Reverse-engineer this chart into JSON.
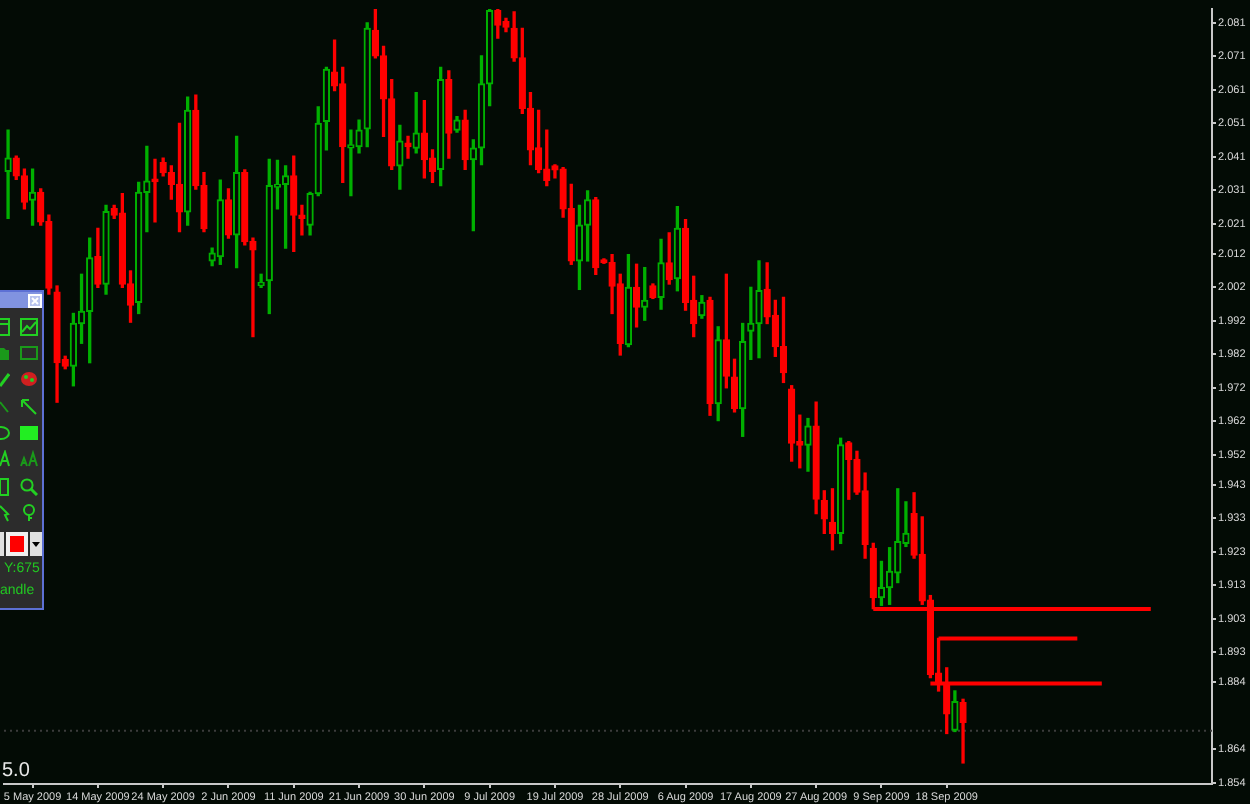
{
  "chart_data": {
    "type": "candlestick",
    "categories": [
      null,
      null,
      null,
      "5 May 2009",
      null,
      null,
      null,
      null,
      null,
      null,
      null,
      "14 May 2009",
      null,
      null,
      null,
      null,
      null,
      null,
      null,
      "24 May 2009",
      null,
      null,
      null,
      null,
      null,
      null,
      null,
      "2 Jun 2009",
      null,
      null,
      null,
      null,
      null,
      null,
      null,
      "11 Jun 2009",
      null,
      null,
      null,
      null,
      null,
      null,
      null,
      "21 Jun 2009",
      null,
      null,
      null,
      null,
      null,
      null,
      null,
      "30 Jun 2009",
      null,
      null,
      null,
      null,
      null,
      null,
      null,
      "9 Jul 2009",
      null,
      null,
      null,
      null,
      null,
      null,
      null,
      "19 Jul 2009",
      null,
      null,
      null,
      null,
      null,
      null,
      null,
      "28 Jul 2009",
      null,
      null,
      null,
      null,
      null,
      null,
      null,
      "6 Aug 2009",
      null,
      null,
      null,
      null,
      null,
      null,
      null,
      "17 Aug 2009",
      null,
      null,
      null,
      null,
      null,
      null,
      null,
      "27 Aug 2009",
      null,
      null,
      null,
      null,
      null,
      null,
      null,
      "9 Sep 2009",
      null,
      null,
      null,
      null,
      null,
      null,
      null,
      "18 Sep 2009",
      null,
      null,
      null,
      null,
      null,
      null,
      null,
      null,
      null,
      null,
      null,
      null,
      null,
      null,
      null,
      null,
      null,
      null,
      null,
      null,
      null,
      null,
      null,
      null,
      null,
      null,
      null,
      null,
      null,
      null,
      null,
      null
    ],
    "ohlc": [
      [
        2.0367,
        2.049,
        2.0226,
        2.0406
      ],
      [
        2.0406,
        2.0412,
        2.0343,
        2.0353
      ],
      [
        2.0353,
        2.0373,
        2.0255,
        2.0275
      ],
      [
        2.0281,
        2.0373,
        2.0206,
        2.0304
      ],
      [
        2.0304,
        2.0314,
        2.0206,
        2.0216
      ],
      [
        2.0216,
        2.0236,
        2.0,
        2.0018
      ],
      [
        2.0006,
        2.0024,
        1.9677,
        1.9795
      ],
      [
        1.9805,
        1.9814,
        1.9777,
        1.9785
      ],
      [
        1.9785,
        1.9942,
        1.9726,
        1.9912
      ],
      [
        1.9912,
        2.0059,
        1.9853,
        1.9948
      ],
      [
        1.9948,
        2.0167,
        1.9795,
        2.0108
      ],
      [
        2.0112,
        2.0196,
        2.002,
        2.003
      ],
      [
        2.003,
        2.0265,
        2.0,
        2.0246
      ],
      [
        2.0255,
        2.0265,
        2.0226,
        2.0236
      ],
      [
        2.0242,
        2.03,
        2.002,
        2.003
      ],
      [
        2.003,
        2.0069,
        1.9916,
        1.9967
      ],
      [
        1.9975,
        2.0334,
        1.9942,
        2.0304
      ],
      [
        2.0304,
        2.0441,
        2.0187,
        2.0337
      ],
      [
        2.0343,
        2.0402,
        2.0216,
        2.0336
      ],
      [
        2.0393,
        2.0406,
        2.0353,
        2.0363
      ],
      [
        2.0363,
        2.0383,
        2.0284,
        2.0328
      ],
      [
        2.0328,
        2.051,
        2.0187,
        2.0246
      ],
      [
        2.0246,
        2.0588,
        2.0206,
        2.0549
      ],
      [
        2.0549,
        2.0594,
        2.0314,
        2.0324
      ],
      [
        2.0324,
        2.0363,
        2.0187,
        2.0196
      ],
      [
        2.0099,
        2.0137,
        2.0085,
        2.0122
      ],
      [
        2.0112,
        2.034,
        2.0089,
        2.0281
      ],
      [
        2.0281,
        2.0314,
        2.0167,
        2.0177
      ],
      [
        2.0177,
        2.0471,
        2.0079,
        2.0363
      ],
      [
        2.0363,
        2.0371,
        2.0147,
        2.0157
      ],
      [
        2.0157,
        2.0167,
        1.9873,
        2.0132
      ],
      [
        2.0026,
        2.0059,
        2.002,
        2.0034
      ],
      [
        2.004,
        2.0402,
        1.9942,
        2.0324
      ],
      [
        2.032,
        2.0399,
        2.0255,
        2.0328
      ],
      [
        2.0328,
        2.0383,
        2.0137,
        2.0353
      ],
      [
        2.0353,
        2.0412,
        2.0128,
        2.0236
      ],
      [
        2.0236,
        2.0265,
        2.0177,
        2.0226
      ],
      [
        2.0206,
        2.0304,
        2.0177,
        2.03
      ],
      [
        2.03,
        2.0559,
        2.0294,
        2.051
      ],
      [
        2.0516,
        2.0677,
        2.0431,
        2.0671
      ],
      [
        2.0663,
        2.0759,
        2.0608,
        2.0622
      ],
      [
        2.0628,
        2.0677,
        2.0334,
        2.0441
      ],
      [
        2.0437,
        2.049,
        2.0294,
        2.0446
      ],
      [
        2.0441,
        2.052,
        2.0422,
        2.049
      ],
      [
        2.0494,
        2.081,
        2.0441,
        2.0794
      ],
      [
        2.0788,
        2.085,
        2.0706,
        2.0712
      ],
      [
        2.0712,
        2.074,
        2.0471,
        2.0583
      ],
      [
        2.0583,
        2.0641,
        2.0373,
        2.0383
      ],
      [
        2.0383,
        2.0504,
        2.0314,
        2.0457
      ],
      [
        2.0451,
        2.0471,
        2.0406,
        2.0441
      ],
      [
        2.0436,
        2.0602,
        2.0422,
        2.0481
      ],
      [
        2.0481,
        2.0578,
        2.0347,
        2.0402
      ],
      [
        2.0406,
        2.0431,
        2.0334,
        2.0367
      ],
      [
        2.0373,
        2.0677,
        2.0324,
        2.0641
      ],
      [
        2.0641,
        2.0667,
        2.0406,
        2.0481
      ],
      [
        2.049,
        2.053,
        2.0484,
        2.052
      ],
      [
        2.052,
        2.0549,
        2.0373,
        2.0402
      ],
      [
        2.0402,
        2.0461,
        2.019,
        2.0436
      ],
      [
        2.0437,
        2.0712,
        2.0387,
        2.0628
      ],
      [
        2.0628,
        2.085,
        2.0563,
        2.0847
      ],
      [
        2.0847,
        2.085,
        2.0765,
        2.0804
      ],
      [
        2.0814,
        2.0824,
        2.0784,
        2.0798
      ],
      [
        2.0794,
        2.0843,
        2.0696,
        2.0706
      ],
      [
        2.0706,
        2.0794,
        2.054,
        2.0555
      ],
      [
        2.0555,
        2.0602,
        2.0387,
        2.0431
      ],
      [
        2.0437,
        2.0549,
        2.0363,
        2.0373
      ],
      [
        2.0373,
        2.049,
        2.0324,
        2.034
      ],
      [
        2.0383,
        2.0386,
        2.0347,
        2.0371
      ],
      [
        2.0373,
        2.0378,
        2.023,
        2.0255
      ],
      [
        2.0255,
        2.0328,
        2.0089,
        2.0099
      ],
      [
        2.0099,
        2.0265,
        2.0014,
        2.0206
      ],
      [
        2.0206,
        2.0308,
        2.0099,
        2.0281
      ],
      [
        2.0281,
        2.0288,
        2.0059,
        2.0079
      ],
      [
        2.0102,
        2.0105,
        2.0092,
        2.0094
      ],
      [
        2.0094,
        2.0118,
        1.9942,
        2.0024
      ],
      [
        2.003,
        2.0059,
        1.9818,
        1.9853
      ],
      [
        1.9849,
        2.0118,
        1.9843,
        2.002
      ],
      [
        2.002,
        2.0089,
        1.9902,
        1.9961
      ],
      [
        1.9961,
        2.0079,
        1.9922,
        1.9981
      ],
      [
        2.0024,
        2.003,
        1.9987,
        1.999
      ],
      [
        1.999,
        2.0163,
        1.9955,
        2.0093
      ],
      [
        2.0093,
        2.0183,
        2.003,
        2.0043
      ],
      [
        2.0046,
        2.0261,
        2.001,
        2.0196
      ],
      [
        2.0196,
        2.0222,
        1.9952,
        1.9975
      ],
      [
        1.9981,
        2.0053,
        1.9873,
        1.9912
      ],
      [
        1.9936,
        1.9995,
        1.9928,
        1.9975
      ],
      [
        1.9981,
        1.999,
        1.9638,
        1.9673
      ],
      [
        1.9673,
        1.9902,
        1.9622,
        1.9863
      ],
      [
        1.9863,
        2.0059,
        1.972,
        1.9755
      ],
      [
        1.9752,
        1.9805,
        1.9648,
        1.9658
      ],
      [
        1.9658,
        1.9912,
        1.9575,
        1.9858
      ],
      [
        1.9889,
        2.002,
        1.9805,
        1.9912
      ],
      [
        1.9912,
        2.0099,
        1.981,
        2.001
      ],
      [
        2.0014,
        2.0093,
        1.9912,
        1.9932
      ],
      [
        1.9936,
        1.9981,
        1.9814,
        1.9843
      ],
      [
        1.9843,
        1.999,
        1.9736,
        1.9765
      ],
      [
        1.9716,
        1.9726,
        1.9501,
        1.9555
      ],
      [
        1.9559,
        1.9638,
        1.9481,
        1.9549
      ],
      [
        1.9549,
        1.9628,
        1.9471,
        1.9605
      ],
      [
        1.9605,
        1.9677,
        1.9344,
        1.9387
      ],
      [
        1.9383,
        1.9412,
        1.9285,
        1.9328
      ],
      [
        1.9318,
        1.9418,
        1.9236,
        1.9285
      ],
      [
        1.9285,
        1.9569,
        1.9255,
        1.9549
      ],
      [
        1.9555,
        1.9559,
        1.9387,
        1.9506
      ],
      [
        1.9506,
        1.953,
        1.9402,
        1.9408
      ],
      [
        1.9412,
        1.9465,
        1.9211,
        1.9252
      ],
      [
        1.924,
        1.9255,
        1.906,
        1.9093
      ],
      [
        1.9093,
        1.9201,
        1.907,
        1.9123
      ],
      [
        1.9123,
        1.9242,
        1.9073,
        1.9171
      ],
      [
        1.9167,
        1.9418,
        1.9138,
        1.926
      ],
      [
        1.9255,
        1.9379,
        1.9246,
        1.9285
      ],
      [
        1.9344,
        1.9406,
        1.9211,
        1.922
      ],
      [
        1.9222,
        1.9334,
        1.9073,
        1.9083
      ],
      [
        1.9085,
        1.9099,
        1.8854,
        1.8864
      ],
      [
        1.8867,
        1.8971,
        1.8814,
        1.8838
      ],
      [
        1.8838,
        1.8883,
        1.8687,
        1.8746
      ],
      [
        1.8697,
        1.8814,
        1.8693,
        1.8782
      ],
      [
        1.8779,
        1.8789,
        1.8599,
        1.872
      ],
      null,
      null,
      null,
      null,
      null,
      null,
      null,
      null,
      null,
      null,
      null,
      null,
      null,
      null,
      null,
      null,
      null,
      null,
      null,
      null,
      null,
      null,
      null,
      null,
      null,
      null,
      null,
      null,
      null,
      null
    ],
    "colors": [
      "#00b000",
      "#ff0000",
      "#ff0000",
      "#00b000",
      "#ff0000",
      "#ff0000",
      "#ff0000",
      "#ff0000",
      "#00b000",
      "#00b000",
      "#00b000",
      "#ff0000",
      "#00b000",
      "#ff0000",
      "#ff0000",
      "#ff0000",
      "#00b000",
      "#00b000",
      "#ff0000",
      "#ff0000",
      "#ff0000",
      "#ff0000",
      "#00b000",
      "#ff0000",
      "#ff0000",
      "#00b000",
      "#00b000",
      "#ff0000",
      "#00b000",
      "#ff0000",
      "#ff0000",
      "#00b000",
      "#00b000",
      "#00b000",
      "#00b000",
      "#ff0000",
      "#ff0000",
      "#00b000",
      "#00b000",
      "#00b000",
      "#ff0000",
      "#ff0000",
      "#00b000",
      "#00b000",
      "#00b000",
      "#ff0000",
      "#ff0000",
      "#ff0000",
      "#00b000",
      "#ff0000",
      "#00b000",
      "#ff0000",
      "#ff0000",
      "#00b000",
      "#ff0000",
      "#00b000",
      "#ff0000",
      "#00b000",
      "#00b000",
      "#00b000",
      "#ff0000",
      "#ff0000",
      "#ff0000",
      "#ff0000",
      "#ff0000",
      "#ff0000",
      "#ff0000",
      "#ff0000",
      "#ff0000",
      "#ff0000",
      "#00b000",
      "#00b000",
      "#ff0000",
      "#ff0000",
      "#ff0000",
      "#ff0000",
      "#00b000",
      "#ff0000",
      "#00b000",
      "#ff0000",
      "#00b000",
      "#ff0000",
      "#00b000",
      "#ff0000",
      "#ff0000",
      "#00b000",
      "#ff0000",
      "#00b000",
      "#ff0000",
      "#ff0000",
      "#00b000",
      "#00b000",
      "#00b000",
      "#ff0000",
      "#ff0000",
      "#ff0000",
      "#ff0000",
      "#ff0000",
      "#00b000",
      "#ff0000",
      "#ff0000",
      "#ff0000",
      "#00b000",
      "#ff0000",
      "#ff0000",
      "#ff0000",
      "#ff0000",
      "#00b000",
      "#00b000",
      "#00b000",
      "#00b000",
      "#ff0000",
      "#ff0000",
      "#ff0000",
      "#ff0000",
      "#ff0000",
      "#00b000",
      "#ff0000",
      null,
      null,
      null,
      null,
      null,
      null,
      null,
      null,
      null,
      null,
      null,
      null,
      null,
      null,
      null,
      null,
      null,
      null,
      null,
      null,
      null,
      null,
      null,
      null,
      null,
      null,
      null,
      null,
      null,
      null
    ],
    "series": [
      {
        "type": "line",
        "color": "#ff0000",
        "values": [
          null,
          null,
          null,
          null,
          null,
          null,
          null,
          null,
          null,
          null,
          null,
          null,
          null,
          null,
          null,
          null,
          null,
          null,
          null,
          null,
          null,
          null,
          null,
          null,
          null,
          null,
          null,
          null,
          null,
          null,
          null,
          null,
          null,
          null,
          null,
          null,
          null,
          null,
          null,
          null,
          null,
          null,
          null,
          null,
          null,
          null,
          null,
          null,
          null,
          null,
          null,
          null,
          null,
          null,
          null,
          null,
          null,
          null,
          null,
          null,
          null,
          null,
          null,
          null,
          null,
          null,
          null,
          null,
          null,
          null,
          null,
          null,
          null,
          null,
          null,
          null,
          null,
          null,
          null,
          null,
          null,
          null,
          null,
          null,
          null,
          null,
          null,
          null,
          null,
          null,
          null,
          null,
          null,
          null,
          null,
          null,
          null,
          null,
          null,
          null,
          null,
          null,
          null,
          null,
          null,
          null,
          1.9059,
          1.9059,
          1.9059,
          1.9059,
          1.9059,
          1.9059,
          1.9059,
          1.9059,
          1.9059,
          1.9059,
          1.9059,
          1.9059,
          1.9059,
          1.9059,
          1.9059,
          1.9059,
          1.9059,
          1.9059,
          1.9059,
          1.9059,
          1.9059,
          1.9059,
          1.9059,
          1.9059,
          1.9059,
          1.9059,
          1.9059,
          1.9059,
          1.9059,
          1.9059,
          1.9059,
          1.9059,
          1.9059,
          1.9059,
          1.9059,
          null,
          null,
          null,
          null,
          null,
          null,
          null
        ]
      },
      {
        "type": "line",
        "color": "#ff0000",
        "values": [
          null,
          null,
          null,
          null,
          null,
          null,
          null,
          null,
          null,
          null,
          null,
          null,
          null,
          null,
          null,
          null,
          null,
          null,
          null,
          null,
          null,
          null,
          null,
          null,
          null,
          null,
          null,
          null,
          null,
          null,
          null,
          null,
          null,
          null,
          null,
          null,
          null,
          null,
          null,
          null,
          null,
          null,
          null,
          null,
          null,
          null,
          null,
          null,
          null,
          null,
          null,
          null,
          null,
          null,
          null,
          null,
          null,
          null,
          null,
          null,
          null,
          null,
          null,
          null,
          null,
          null,
          null,
          null,
          null,
          null,
          null,
          null,
          null,
          null,
          null,
          null,
          null,
          null,
          null,
          null,
          null,
          null,
          null,
          null,
          null,
          null,
          null,
          null,
          null,
          null,
          null,
          null,
          null,
          null,
          null,
          null,
          null,
          null,
          null,
          null,
          null,
          null,
          null,
          null,
          null,
          null,
          null,
          null,
          null,
          null,
          null,
          null,
          null,
          null,
          1.8971,
          1.8971,
          1.8971,
          1.8971,
          1.8971,
          1.8971,
          1.8971,
          1.8971,
          1.8971,
          1.8971,
          1.8971,
          1.8971,
          1.8971,
          1.8971,
          1.8971,
          1.8971,
          1.8971,
          1.8971,
          null,
          null,
          null,
          null,
          null,
          null,
          null,
          null,
          null,
          null,
          null,
          null,
          null,
          null,
          null,
          null
        ]
      },
      {
        "type": "line",
        "color": "#ff0000",
        "values": [
          null,
          null,
          null,
          null,
          null,
          null,
          null,
          null,
          null,
          null,
          null,
          null,
          null,
          null,
          null,
          null,
          null,
          null,
          null,
          null,
          null,
          null,
          null,
          null,
          null,
          null,
          null,
          null,
          null,
          null,
          null,
          null,
          null,
          null,
          null,
          null,
          null,
          null,
          null,
          null,
          null,
          null,
          null,
          null,
          null,
          null,
          null,
          null,
          null,
          null,
          null,
          null,
          null,
          null,
          null,
          null,
          null,
          null,
          null,
          null,
          null,
          null,
          null,
          null,
          null,
          null,
          null,
          null,
          null,
          null,
          null,
          null,
          null,
          null,
          null,
          null,
          null,
          null,
          null,
          null,
          null,
          null,
          null,
          null,
          null,
          null,
          null,
          null,
          null,
          null,
          null,
          null,
          null,
          null,
          null,
          null,
          null,
          null,
          null,
          null,
          null,
          null,
          null,
          null,
          null,
          null,
          null,
          null,
          null,
          null,
          null,
          null,
          null,
          1.8836,
          1.8836,
          1.8836,
          1.8836,
          1.8836,
          1.8836,
          1.8836,
          1.8836,
          1.8836,
          1.8836,
          1.8836,
          1.8836,
          1.8836,
          1.8836,
          1.8836,
          1.8836,
          1.8836,
          1.8836,
          1.8836,
          1.8836,
          1.8836,
          1.8836,
          null,
          null,
          null,
          null,
          null,
          null,
          null,
          null,
          null,
          null,
          null,
          null,
          null
        ]
      }
    ],
    "ylim": [
      1.8536,
      2.0853
    ],
    "yticks": [
      1.854,
      1.864,
      1.884,
      1.893,
      1.903,
      1.913,
      1.923,
      1.933,
      1.943,
      1.952,
      1.962,
      1.972,
      1.982,
      1.992,
      2.002,
      2.012,
      2.021,
      2.031,
      2.041,
      2.051,
      2.061,
      2.071,
      2.081
    ],
    "ref_lines": [
      {
        "axis": "y",
        "value": 1.8695,
        "color": "#3c3c3c",
        "line_style": "dotted"
      }
    ],
    "marker": "none",
    "annotations": [
      "5.0",
      "Y:675",
      "andle"
    ]
  }
}
